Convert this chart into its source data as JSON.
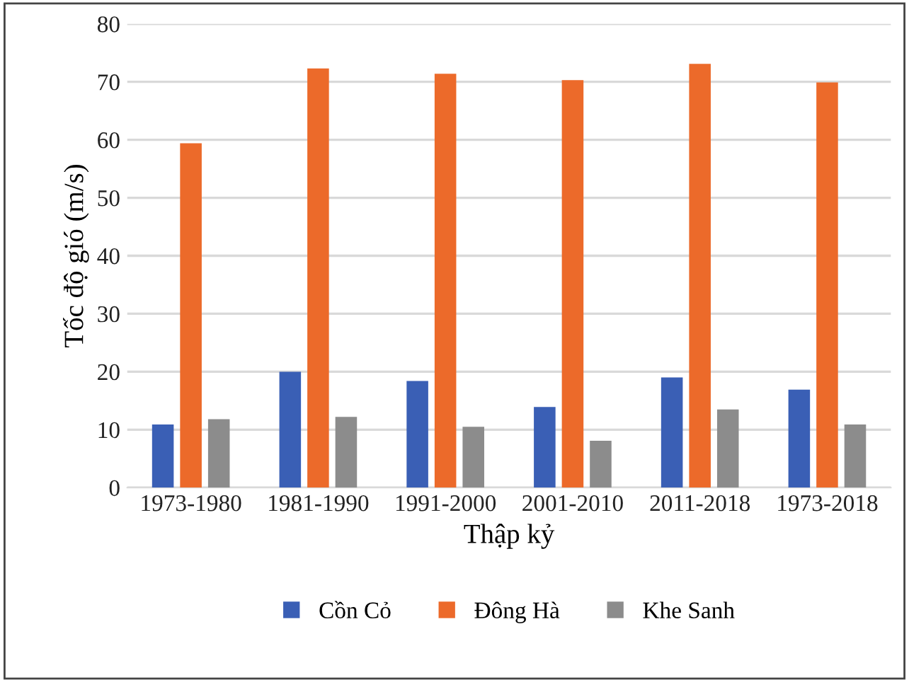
{
  "chart_data": {
    "type": "bar",
    "xlabel": "Thập kỷ",
    "ylabel": "Tốc độ gió (m/s)",
    "categories": [
      "1973-1980",
      "1981-1990",
      "1991-2000",
      "2001-2010",
      "2011-2018",
      "1973-2018"
    ],
    "series": [
      {
        "name": "Cồn Cỏ",
        "color": "#3a5fb5",
        "values": [
          10.9,
          20.0,
          18.4,
          13.9,
          19.0,
          16.9
        ]
      },
      {
        "name": "Đông Hà",
        "color": "#ec6a2a",
        "values": [
          59.4,
          72.3,
          71.4,
          70.3,
          73.1,
          69.9
        ]
      },
      {
        "name": "Khe Sanh",
        "color": "#8c8c8c",
        "values": [
          11.8,
          12.2,
          10.5,
          8.1,
          13.5,
          10.9
        ]
      }
    ],
    "ylim": [
      0,
      80
    ],
    "yticks": [
      0,
      10,
      20,
      30,
      40,
      50,
      60,
      70,
      80
    ],
    "grid": "y",
    "legend": "bottom"
  }
}
